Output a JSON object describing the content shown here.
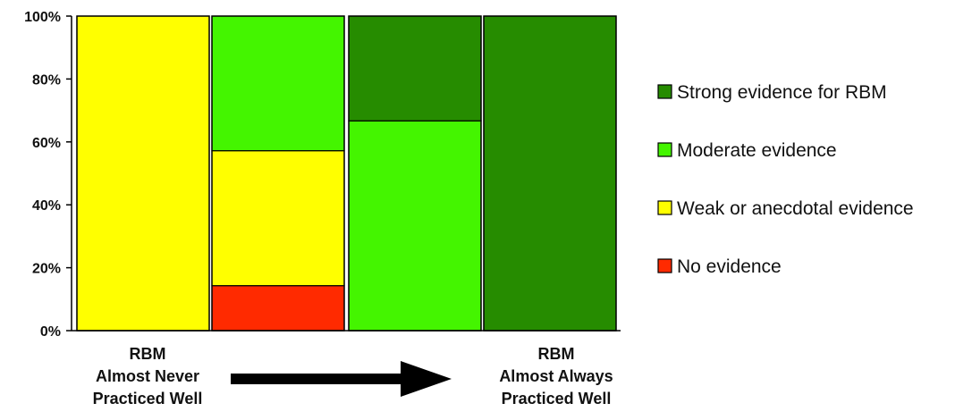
{
  "chart_data": {
    "type": "bar",
    "stacked": true,
    "ylim": [
      0,
      100
    ],
    "yticks": [
      "0%",
      "20%",
      "40%",
      "60%",
      "80%",
      "100%"
    ],
    "categories": [
      "",
      "",
      "",
      ""
    ],
    "series": [
      {
        "name": "No evidence",
        "color": "#ff2a00",
        "values": [
          0,
          14.3,
          0,
          0
        ]
      },
      {
        "name": "Weak or anecdotal evidence",
        "color": "#ffff00",
        "values": [
          100,
          42.9,
          0,
          0
        ]
      },
      {
        "name": "Moderate evidence",
        "color": "#44f500",
        "values": [
          0,
          42.8,
          66.7,
          0
        ]
      },
      {
        "name": "Strong evidence for RBM",
        "color": "#268c00",
        "values": [
          0,
          0,
          33.3,
          100
        ]
      }
    ],
    "legend_order": [
      "Strong evidence for RBM",
      "Moderate evidence",
      "Weak or anecdotal evidence",
      "No evidence"
    ],
    "legend_position": "right",
    "grid": false
  },
  "annotations": {
    "left_label": [
      "RBM",
      "Almost Never",
      "Practiced Well"
    ],
    "right_label": [
      "RBM",
      "Almost Always",
      "Practiced Well"
    ],
    "arrow": "arrow-right-icon"
  }
}
